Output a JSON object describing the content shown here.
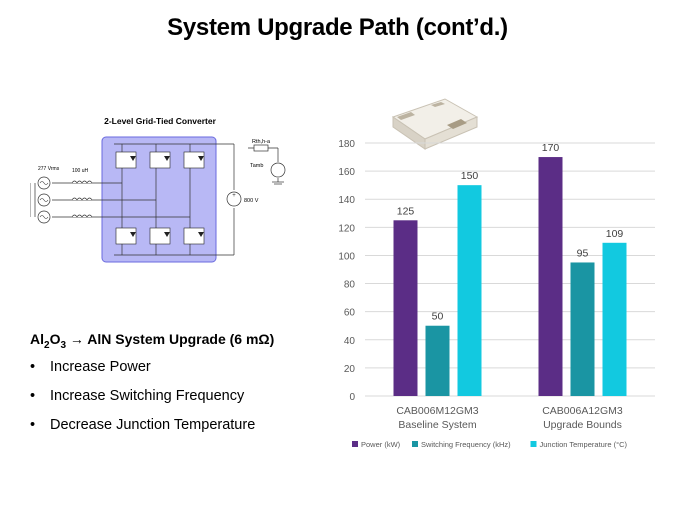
{
  "slide": {
    "title": "System Upgrade Path (cont’d.)"
  },
  "circuit": {
    "title": "2-Level Grid-Tied Converter",
    "source_label": "277 Vrms",
    "inductor_label": "100 uH",
    "rth_label": "Rth,h-a",
    "tamb_label": "Tamb",
    "dc_label": "800 V",
    "colors": {
      "bridge_fill": "#b8b8f5",
      "bridge_stroke": "#6a6adf"
    }
  },
  "upgrade": {
    "heading_pre": "Al",
    "heading_sub1": "2",
    "heading_mid": "O",
    "heading_sub2": "3",
    "heading_post": " → AlN System Upgrade (6 mΩ)",
    "bullet_glyph": "•",
    "bullets": [
      "Increase Power",
      "Increase Switching Frequency",
      "Decrease Junction Temperature"
    ]
  },
  "chart_data": {
    "type": "bar",
    "categories": [
      [
        "CAB006M12GM3",
        "Baseline System"
      ],
      [
        "CAB006A12GM3",
        "Upgrade Bounds"
      ]
    ],
    "series": [
      {
        "name": "Power (kW)",
        "values": [
          125,
          170
        ],
        "color": "#5b2d86"
      },
      {
        "name": "Switching Frequency (kHz)",
        "values": [
          50,
          95
        ],
        "color": "#1a95a3"
      },
      {
        "name": "Junction Temperature (°C)",
        "values": [
          150,
          109
        ],
        "color": "#12c9e0"
      }
    ],
    "ylim": [
      0,
      180
    ],
    "yticks": [
      0,
      20,
      40,
      60,
      80,
      100,
      120,
      140,
      160,
      180
    ],
    "grid": true,
    "legend": "bottom",
    "colors": {
      "grid": "#d9d9d9",
      "axis_text": "#595959"
    }
  }
}
